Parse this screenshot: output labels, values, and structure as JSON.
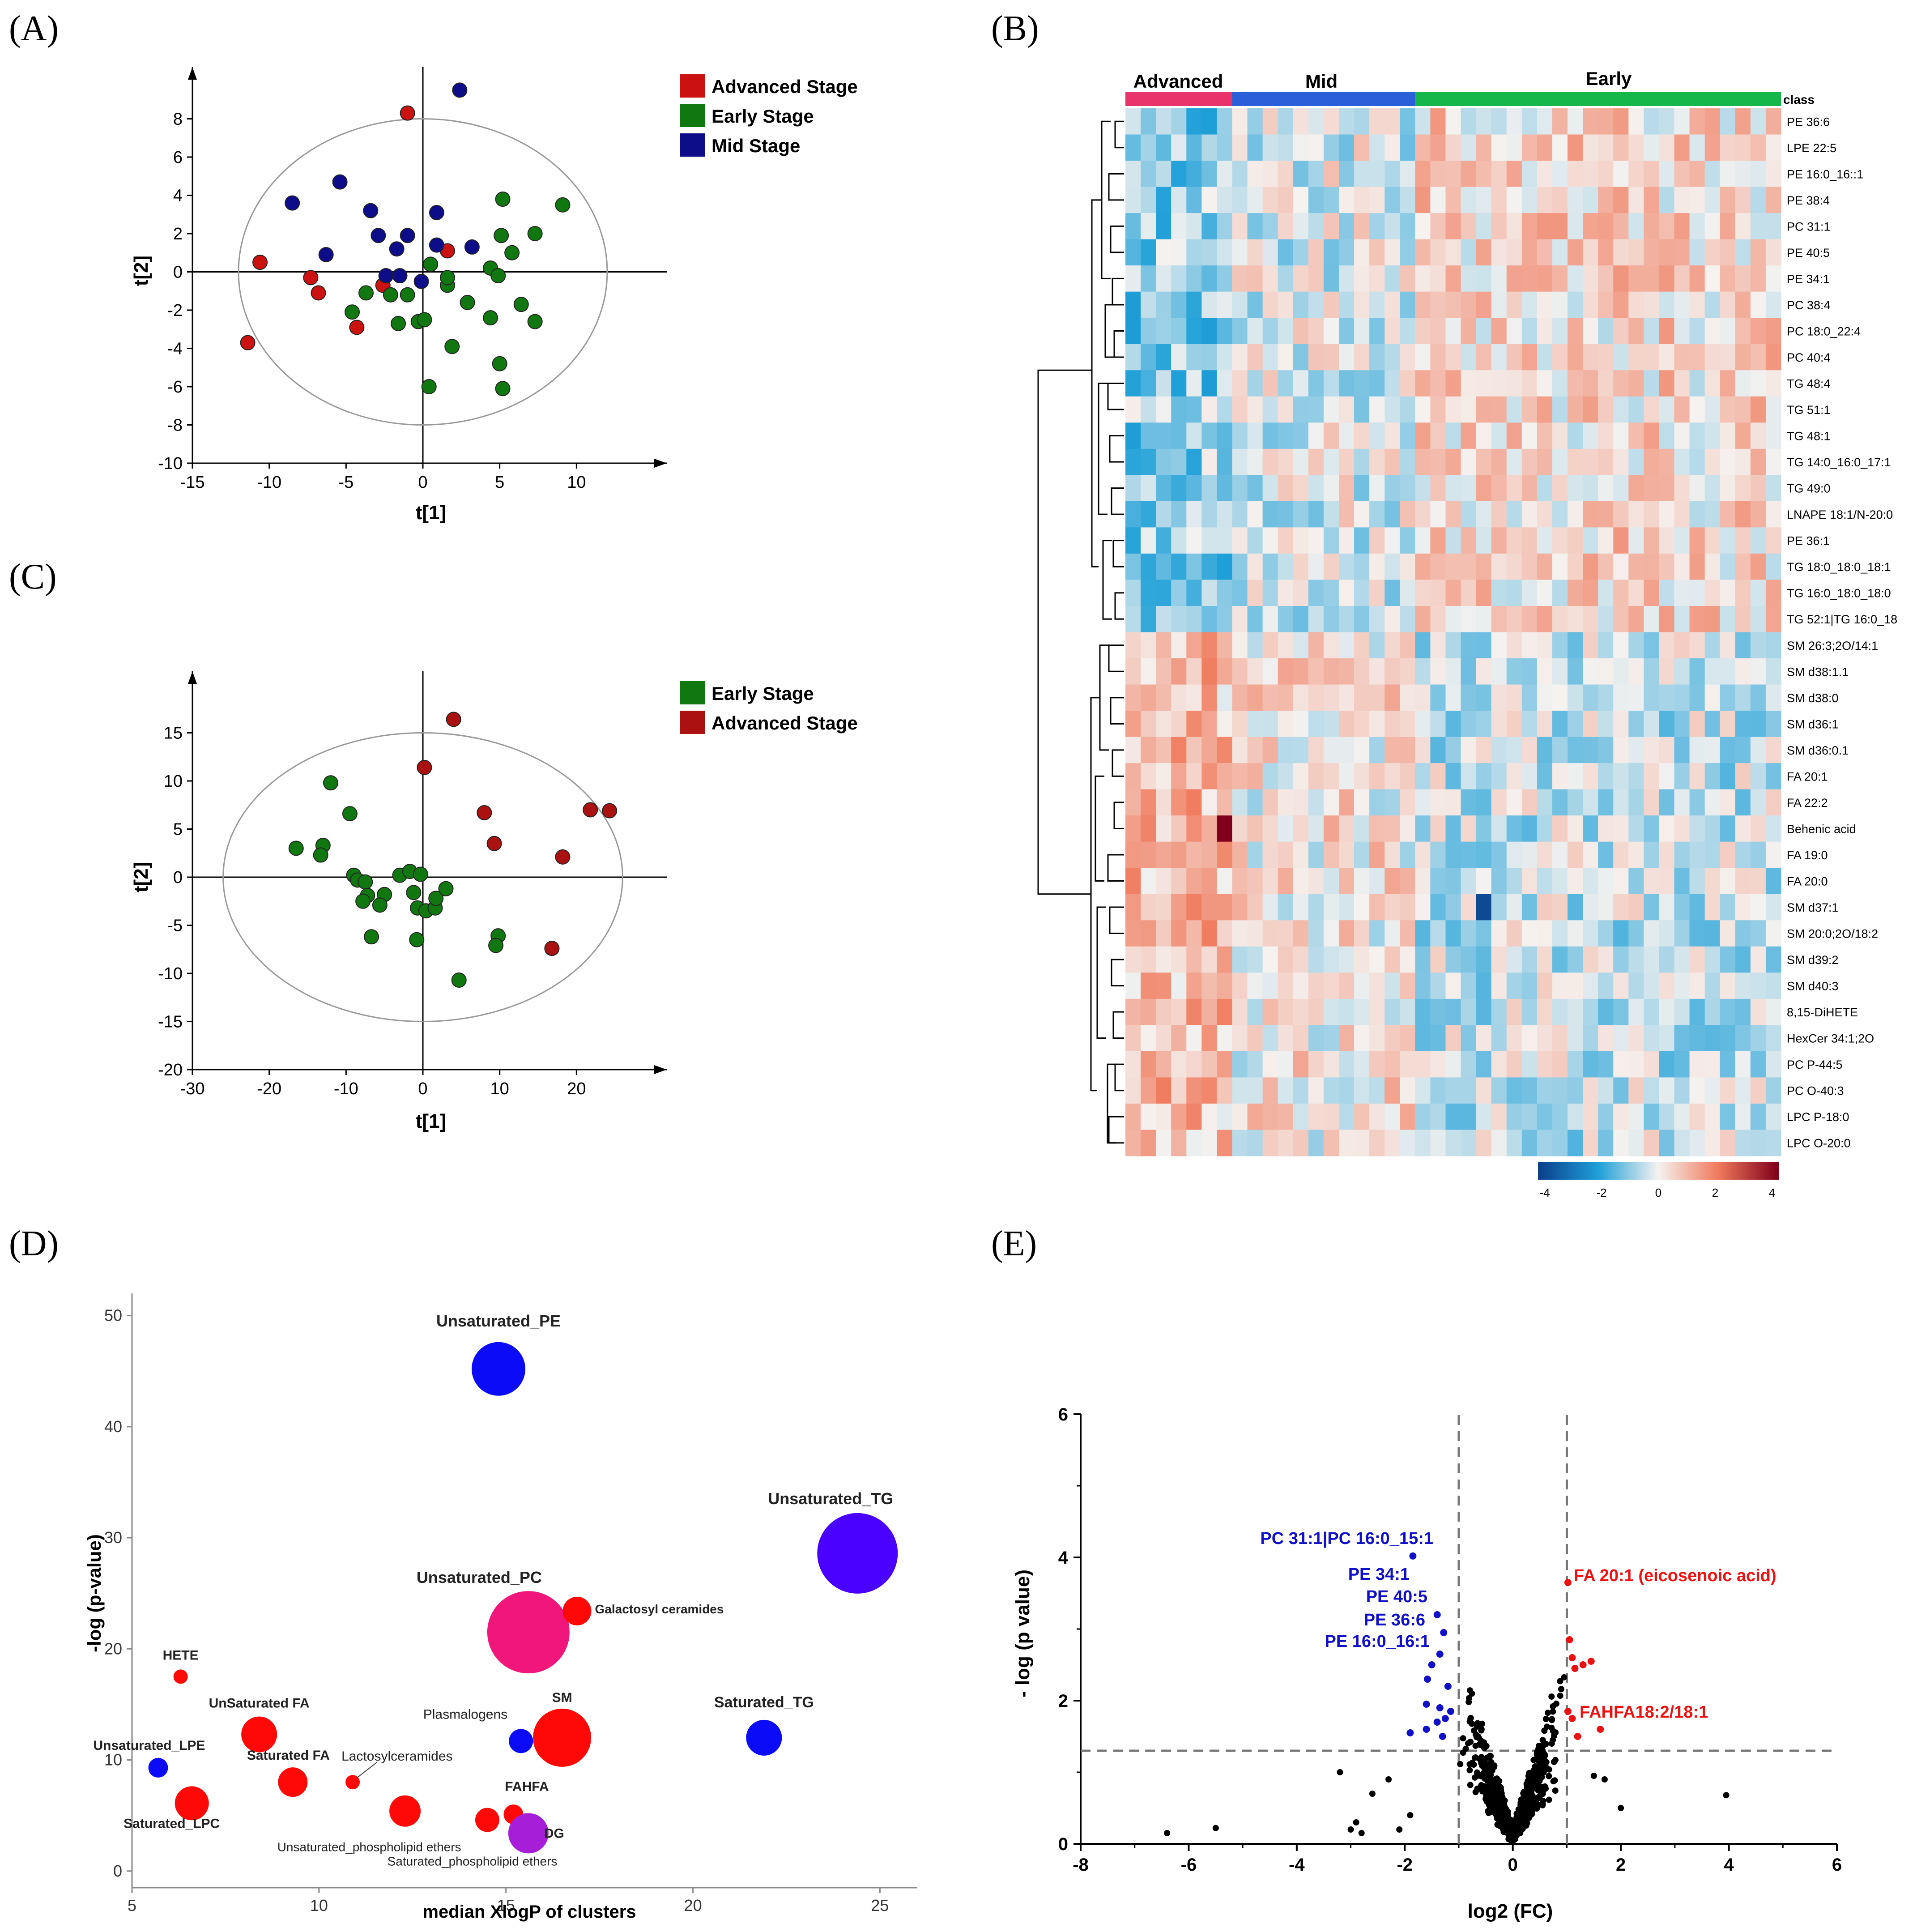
{
  "panel_labels": [
    "(A)",
    "(B)",
    "(C)",
    "(D)",
    "(E)"
  ],
  "chart_data": [
    {
      "panel": "(A)",
      "type": "scatter",
      "xlabel": "t[1]",
      "ylabel": "t[2]",
      "xlim": [
        -15,
        15
      ],
      "ylim": [
        -10,
        10
      ],
      "xticks": [
        "-15",
        "-10",
        "-5",
        "0",
        "5",
        "10"
      ],
      "yticks": [
        "-10",
        "-8",
        "-6",
        "-4",
        "-2",
        "0",
        "2",
        "4",
        "6",
        "8"
      ],
      "ellipse": {
        "cx": 0,
        "cy": 0,
        "rx": 12,
        "ry": 8
      },
      "legend": [
        {
          "label": "Advanced Stage",
          "color": "#cc1111"
        },
        {
          "label": "Early Stage",
          "color": "#117711"
        },
        {
          "label": "Mid Stage",
          "color": "#0d0d8a"
        }
      ],
      "series": [
        {
          "name": "Advanced Stage",
          "color": "#cc1111",
          "points": [
            [
              -1,
              8.3
            ],
            [
              -10.6,
              0.5
            ],
            [
              -7.3,
              -0.3
            ],
            [
              -6.8,
              -1.1
            ],
            [
              -4.3,
              -2.9
            ],
            [
              -11.4,
              -3.7
            ],
            [
              -2.6,
              -0.7
            ],
            [
              1.6,
              1.1
            ]
          ]
        },
        {
          "name": "Early Stage",
          "color": "#117711",
          "points": [
            [
              5.2,
              3.8
            ],
            [
              9.1,
              3.5
            ],
            [
              7.3,
              2.0
            ],
            [
              5.1,
              1.9
            ],
            [
              5.8,
              1.0
            ],
            [
              4.4,
              0.2
            ],
            [
              4.9,
              -0.2
            ],
            [
              2.9,
              -1.6
            ],
            [
              1.6,
              -0.7
            ],
            [
              1.6,
              -0.3
            ],
            [
              0.5,
              0.4
            ],
            [
              -1.0,
              -1.2
            ],
            [
              -2.1,
              -1.2
            ],
            [
              -3.7,
              -1.1
            ],
            [
              -4.6,
              -2.1
            ],
            [
              -1.6,
              -2.7
            ],
            [
              -0.3,
              -2.6
            ],
            [
              0.1,
              -2.5
            ],
            [
              4.4,
              -2.4
            ],
            [
              6.4,
              -1.7
            ],
            [
              7.3,
              -2.6
            ],
            [
              1.9,
              -3.9
            ],
            [
              5.0,
              -4.8
            ],
            [
              0.4,
              -6.0
            ],
            [
              5.2,
              -6.1
            ]
          ]
        },
        {
          "name": "Mid Stage",
          "color": "#0d0d8a",
          "points": [
            [
              2.4,
              9.5
            ],
            [
              -5.4,
              4.7
            ],
            [
              -8.5,
              3.6
            ],
            [
              -3.4,
              3.2
            ],
            [
              0.9,
              3.1
            ],
            [
              -2.9,
              1.9
            ],
            [
              -1.0,
              1.9
            ],
            [
              -1.7,
              1.2
            ],
            [
              0.9,
              1.4
            ],
            [
              3.2,
              1.3
            ],
            [
              -6.3,
              0.9
            ],
            [
              -2.4,
              -0.2
            ],
            [
              -1.5,
              -0.2
            ],
            [
              -0.1,
              -0.5
            ]
          ]
        }
      ]
    },
    {
      "panel": "(B)",
      "type": "heatmap",
      "class_label": "class",
      "groups": [
        {
          "label": "Advanced",
          "color": "#e8336b",
          "n": 7
        },
        {
          "label": "Mid",
          "color": "#2b5fd9",
          "n": 12
        },
        {
          "label": "Early",
          "color": "#16b74a",
          "n": 24
        }
      ],
      "rows": [
        "PE 36:6",
        "LPE 22:5",
        "PE 16:0_16::1",
        "PE 38:4",
        "PC 31:1",
        "PE 40:5",
        "PE 34:1",
        "PC 38:4",
        "PC 18:0_22:4",
        "PC 40:4",
        "TG 48:4",
        "TG 51:1",
        "TG 48:1",
        "TG 14:0_16:0_17:1",
        "TG 49:0",
        "LNAPE 18:1/N-20:0",
        "PE 36:1",
        "TG 18:0_18:0_18:1",
        "TG 16:0_18:0_18:0",
        "TG 52:1|TG 16:0_18",
        "SM 26:3;2O/14:1",
        "SM d38:1.1",
        "SM d38:0",
        "SM d36:1",
        "SM d36:0.1",
        "FA 20:1",
        "FA 22:2",
        "Behenic acid",
        "FA 19:0",
        "FA 20:0",
        "SM d37:1",
        "SM 20:0;2O/18:2",
        "SM d39:2",
        "SM d40:3",
        "8,15-DiHETE",
        "HexCer 34:1;2O",
        "PC P-44:5",
        "PC O-40:3",
        "LPC P-18:0",
        "LPC O-20:0"
      ],
      "color_scale": {
        "ticks": [
          "-4",
          "-2",
          "0",
          "2",
          "4"
        ],
        "min": -4,
        "max": 4,
        "low": "#0c3f8c",
        "lowmid": "#1fa0d8",
        "mid": "#f5f2f0",
        "highmid": "#f07a5c",
        "high": "#80001c"
      }
    },
    {
      "panel": "(C)",
      "type": "scatter",
      "xlabel": "t[1]",
      "ylabel": "t[2]",
      "xlim": [
        -30,
        30
      ],
      "ylim": [
        -20,
        20
      ],
      "xticks": [
        "-30",
        "-20",
        "-10",
        "0",
        "10",
        "20"
      ],
      "yticks": [
        "-20",
        "-15",
        "-10",
        "-5",
        "0",
        "5",
        "10",
        "15"
      ],
      "ellipse": {
        "cx": 0,
        "cy": 0,
        "rx": 26,
        "ry": 15
      },
      "legend": [
        {
          "label": "Early Stage",
          "color": "#117711"
        },
        {
          "label": "Advanced Stage",
          "color": "#aa1111"
        }
      ],
      "series": [
        {
          "name": "Early Stage",
          "color": "#117711",
          "points": [
            [
              -12,
              9.8
            ],
            [
              -9.5,
              6.6
            ],
            [
              -16.5,
              3.0
            ],
            [
              -13,
              3.3
            ],
            [
              -13.3,
              2.3
            ],
            [
              -9,
              0.2
            ],
            [
              -8.5,
              -0.3
            ],
            [
              -7.5,
              -0.5
            ],
            [
              -5,
              -1.8
            ],
            [
              -3,
              0.2
            ],
            [
              -1.7,
              0.6
            ],
            [
              -0.3,
              0.3
            ],
            [
              -1.2,
              -1.6
            ],
            [
              -7.2,
              -1.9
            ],
            [
              -7.8,
              -2.5
            ],
            [
              -5.6,
              -2.9
            ],
            [
              -0.7,
              -3.2
            ],
            [
              0.4,
              -3.5
            ],
            [
              1.6,
              -3.2
            ],
            [
              1.7,
              -2.2
            ],
            [
              3,
              -1.2
            ],
            [
              -6.7,
              -6.2
            ],
            [
              -0.8,
              -6.5
            ],
            [
              9.8,
              -6.1
            ],
            [
              9.5,
              -7.1
            ],
            [
              4.7,
              -10.7
            ]
          ]
        },
        {
          "name": "Advanced Stage",
          "color": "#aa1111",
          "points": [
            [
              4,
              16.4
            ],
            [
              0.2,
              11.4
            ],
            [
              8,
              6.7
            ],
            [
              9.3,
              3.5
            ],
            [
              21.8,
              7.0
            ],
            [
              24.3,
              6.9
            ],
            [
              18.2,
              2.1
            ],
            [
              16.8,
              -7.4
            ]
          ]
        }
      ]
    },
    {
      "panel": "(D)",
      "type": "scatter",
      "xlabel": "median XlogP of clusters",
      "ylabel": "-log (p-value)",
      "xlim": [
        5,
        26
      ],
      "ylim": [
        -1.5,
        52
      ],
      "xticks": [
        "5",
        "10",
        "15",
        "20",
        "25"
      ],
      "yticks": [
        "0",
        "10",
        "20",
        "30",
        "40",
        "50"
      ],
      "bubbles": [
        {
          "label": "Unsaturated_PE",
          "x": 14.8,
          "y": 45.2,
          "r": 60,
          "color": "#0b0bf8"
        },
        {
          "label": "Unsaturated_TG",
          "x": 24.4,
          "y": 28.6,
          "r": 90,
          "color": "#4a00ff"
        },
        {
          "label": "Unsaturated_PC",
          "x": 15.6,
          "y": 21.5,
          "r": 92,
          "color": "#f0167a"
        },
        {
          "label": "Galactosyl ceramides",
          "x": 16.9,
          "y": 23.4,
          "r": 32,
          "color": "#ff0808"
        },
        {
          "label": "HETE",
          "x": 6.3,
          "y": 17.5,
          "r": 16,
          "color": "#ff0808"
        },
        {
          "label": "UnSaturated FA",
          "x": 8.4,
          "y": 12.3,
          "r": 40,
          "color": "#ff0808"
        },
        {
          "label": "SM",
          "x": 16.5,
          "y": 12.0,
          "r": 65,
          "color": "#ff0808"
        },
        {
          "label": "Plasmalogens",
          "x": 15.4,
          "y": 11.7,
          "r": 27,
          "color": "#0b0bf8"
        },
        {
          "label": "Saturated_TG",
          "x": 21.9,
          "y": 12.0,
          "r": 40,
          "color": "#0b0bf8"
        },
        {
          "label": "Unsaturated_LPE",
          "x": 5.7,
          "y": 9.3,
          "r": 22,
          "color": "#0b0bf8"
        },
        {
          "label": "Saturated FA",
          "x": 9.3,
          "y": 8.0,
          "r": 33,
          "color": "#ff0808"
        },
        {
          "label": "Lactosylceramides",
          "x": 10.9,
          "y": 8.0,
          "r": 16,
          "color": "#ff0808"
        },
        {
          "label": "Saturated_LPC",
          "x": 6.6,
          "y": 6.1,
          "r": 38,
          "color": "#ff0808"
        },
        {
          "label": "Unsaturated_phospholipid ethers",
          "x": 12.3,
          "y": 5.4,
          "r": 35,
          "color": "#ff0808"
        },
        {
          "label": "",
          "x": 14.5,
          "y": 4.6,
          "r": 27,
          "color": "#ff0808"
        },
        {
          "label": "FAHFA",
          "x": 15.2,
          "y": 5.1,
          "r": 22,
          "color": "#ff0808"
        },
        {
          "label": "DG",
          "x": 15.6,
          "y": 3.4,
          "r": 45,
          "color": "#a61ed8"
        }
      ],
      "extra_labels": [
        "Saturated_phospholipid ethers"
      ]
    },
    {
      "panel": "(E)",
      "type": "scatter",
      "xlabel": "log2 (FC)",
      "ylabel": "- log (p value)",
      "xlim": [
        -8,
        6
      ],
      "ylim": [
        0,
        6
      ],
      "xticks": [
        "-8",
        "-6",
        "-4",
        "-2",
        "0",
        "2",
        "4",
        "6"
      ],
      "yticks": [
        "0",
        "2",
        "4",
        "6"
      ],
      "thresholds": {
        "x": [
          -1,
          1
        ],
        "y": 1.3
      },
      "labels_down": [
        "PC 31:1|PC 16:0_15:1",
        "PE 34:1",
        "PE 40:5",
        "PE 36:6",
        "PE 16:0_16:1"
      ],
      "labels_up": [
        "FA 20:1 (eicosenoic acid)",
        "FAHFA18:2/18:1"
      ],
      "down_color": "#1010c8",
      "up_color": "#ee1111",
      "ns_color": "#000000",
      "down_points": [
        [
          -1.85,
          4.02
        ],
        [
          -1.4,
          3.2
        ],
        [
          -1.28,
          2.95
        ],
        [
          -1.35,
          2.65
        ],
        [
          -1.5,
          2.5
        ],
        [
          -1.58,
          2.3
        ],
        [
          -1.2,
          2.2
        ],
        [
          -1.6,
          1.95
        ],
        [
          -1.35,
          1.9
        ],
        [
          -1.4,
          1.7
        ],
        [
          -1.6,
          1.6
        ],
        [
          -1.25,
          1.75
        ],
        [
          -1.15,
          1.85
        ],
        [
          -1.3,
          1.5
        ],
        [
          -1.9,
          1.55
        ]
      ],
      "up_points": [
        [
          1.02,
          3.65
        ],
        [
          1.05,
          2.85
        ],
        [
          1.1,
          2.6
        ],
        [
          1.15,
          2.45
        ],
        [
          1.3,
          2.5
        ],
        [
          1.45,
          2.55
        ],
        [
          1.02,
          1.85
        ],
        [
          1.1,
          1.75
        ],
        [
          1.62,
          1.6
        ],
        [
          1.2,
          1.5
        ]
      ],
      "ns_extras": [
        [
          -6.4,
          0.15
        ],
        [
          -5.5,
          0.22
        ],
        [
          -3.2,
          1.0
        ],
        [
          -2.9,
          0.3
        ],
        [
          -2.6,
          0.7
        ],
        [
          -2.3,
          0.9
        ],
        [
          -2.1,
          0.2
        ],
        [
          -1.9,
          0.4
        ],
        [
          3.95,
          0.68
        ],
        [
          1.7,
          0.9
        ],
        [
          1.5,
          0.95
        ],
        [
          2.0,
          0.5
        ],
        [
          -2.8,
          0.15
        ],
        [
          -3.0,
          0.2
        ]
      ],
      "ns_random": {
        "count": 650,
        "seed": 12345
      }
    }
  ]
}
